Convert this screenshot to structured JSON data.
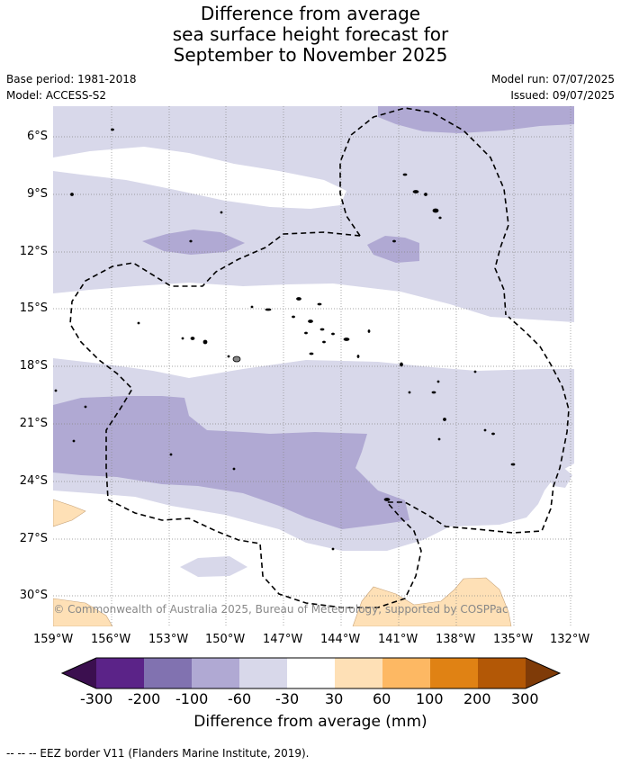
{
  "title": {
    "line1": "Difference from average",
    "line2": "sea surface height forecast for",
    "line3": "September to November 2025"
  },
  "meta": {
    "base_period": "Base period: 1981-2018",
    "model": "Model: ACCESS-S2",
    "model_run": "Model run: 07/07/2025",
    "issued": "Issued: 09/07/2025"
  },
  "map": {
    "lat_labels": [
      "6°S",
      "9°S",
      "12°S",
      "15°S",
      "18°S",
      "21°S",
      "24°S",
      "27°S",
      "30°S"
    ],
    "lon_labels": [
      "159°W",
      "156°W",
      "153°W",
      "150°W",
      "147°W",
      "144°W",
      "141°W",
      "138°W",
      "135°W",
      "132°W"
    ],
    "copyright": "© Commonwealth of Australia 2025, Bureau of Meteorology, supported by COSPPac"
  },
  "colorbar": {
    "title": "Difference from average (mm)",
    "ticks": [
      "-300",
      "-200",
      "-100",
      "-60",
      "-30",
      "30",
      "60",
      "100",
      "200",
      "300"
    ],
    "colors": [
      "#3b0f4f",
      "#5b2388",
      "#8172b0",
      "#b0a9d3",
      "#d8d8ea",
      "#ffffff",
      "#fee0b6",
      "#fdb863",
      "#e08214",
      "#b35806",
      "#7f3b08"
    ]
  },
  "footer": "-- -- -- EEZ border V11 (Flanders Marine Institute, 2019)."
}
